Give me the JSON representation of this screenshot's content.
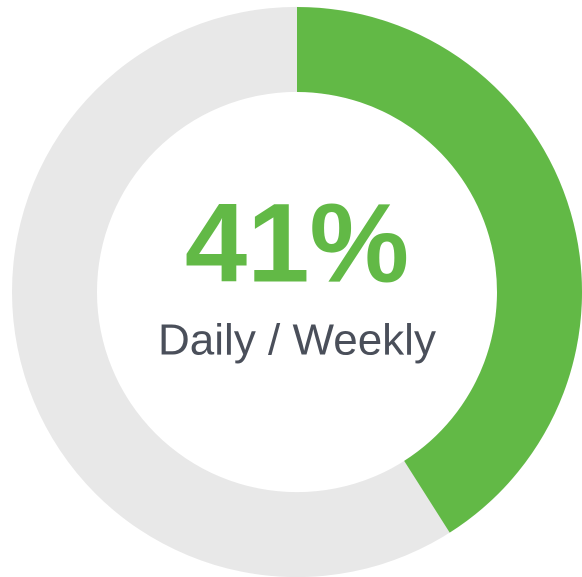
{
  "chart_data": {
    "type": "donut",
    "categories": [
      "Daily / Weekly"
    ],
    "values": [
      41
    ],
    "value_labels": [
      "41%"
    ],
    "range": [
      0,
      100
    ],
    "color": "#62b946",
    "track_color": "#e8e8e8",
    "label_color": "#4a4f5a"
  }
}
